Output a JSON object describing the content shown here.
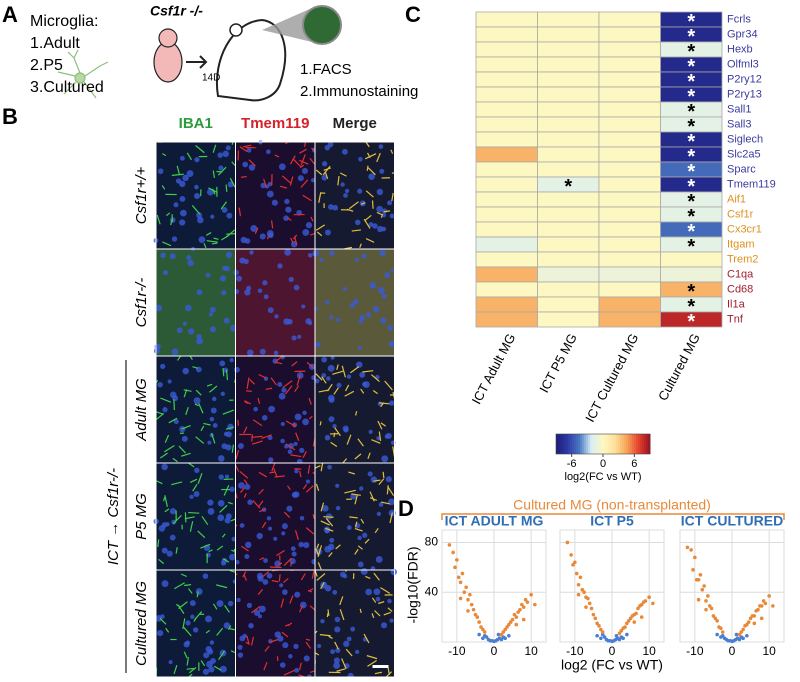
{
  "panel_labels": [
    "A",
    "B",
    "C",
    "D"
  ],
  "panel_a": {
    "heading": "Microglia:",
    "sources": [
      "1.Adult",
      "2.P5",
      "3.Cultured"
    ],
    "model": "Csf1r -/-",
    "interval": "14D",
    "readouts": [
      "1.FACS",
      "2.Immunostaining"
    ]
  },
  "panel_b": {
    "channels": [
      "IBA1",
      "Tmem119",
      "Merge"
    ],
    "channel_colors": [
      "#2e9a3e",
      "#d6202a",
      "#222222"
    ],
    "rows": [
      "Csf1r+/+",
      "Csf1r-/-",
      "Adult MG",
      "P5 MG",
      "Cultured MG"
    ],
    "group_label": "ICT → Csf1r-/-"
  },
  "panel_d": {
    "title": "Cultured MG (non-transplanted)",
    "title_color": "#e8893a",
    "ylabel": "-log10(FDR)",
    "xlabel": "log2 (FC vs WT)"
  },
  "chart_data": [
    {
      "type": "heatmap",
      "rows": [
        "Fcrls",
        "Gpr34",
        "Hexb",
        "Olfml3",
        "P2ry12",
        "P2ry13",
        "Sall1",
        "Sall3",
        "Siglech",
        "Slc2a5",
        "Sparc",
        "Tmem119",
        "Aif1",
        "Csf1r",
        "Cx3cr1",
        "Itgam",
        "Trem2",
        "C1qa",
        "Cd68",
        "Il1a",
        "Tnf"
      ],
      "row_label_colors": [
        "#3b3b9e",
        "#3b3b9e",
        "#3b3b9e",
        "#3b3b9e",
        "#3b3b9e",
        "#3b3b9e",
        "#3b3b9e",
        "#3b3b9e",
        "#3b3b9e",
        "#3b3b9e",
        "#3b3b9e",
        "#3b3b9e",
        "#e0901e",
        "#e0901e",
        "#e0901e",
        "#e0901e",
        "#e0901e",
        "#a31d2d",
        "#a31d2d",
        "#a31d2d",
        "#a31d2d"
      ],
      "columns": [
        "ICT Adult MG",
        "ICT P5 MG",
        "ICT Cultured MG",
        "Cultured MG"
      ],
      "values": [
        [
          0,
          0,
          0,
          -8
        ],
        [
          0,
          0,
          0,
          -8
        ],
        [
          0,
          0,
          0,
          -1.5
        ],
        [
          0,
          0,
          0,
          -8
        ],
        [
          0,
          0,
          0,
          -8
        ],
        [
          0,
          0,
          0,
          -8
        ],
        [
          0,
          0,
          0,
          -1.5
        ],
        [
          0,
          0,
          0,
          -1.5
        ],
        [
          0,
          0,
          0,
          -8
        ],
        [
          4,
          0,
          0,
          -8
        ],
        [
          0,
          0,
          0,
          -5
        ],
        [
          0,
          -1.5,
          0,
          -8
        ],
        [
          0,
          0,
          0,
          -1.5
        ],
        [
          0,
          0,
          0,
          -1.5
        ],
        [
          0,
          0,
          0,
          -5
        ],
        [
          -1.5,
          0,
          0,
          -1.5
        ],
        [
          0,
          0,
          0,
          0
        ],
        [
          4,
          -1,
          -1,
          -1
        ],
        [
          0,
          0,
          0,
          4
        ],
        [
          4,
          0,
          4,
          -1.5
        ],
        [
          4,
          0,
          4,
          8
        ]
      ],
      "stars": [
        [
          null,
          null,
          null,
          "*"
        ],
        [
          null,
          null,
          null,
          "*"
        ],
        [
          null,
          null,
          null,
          "*"
        ],
        [
          null,
          null,
          null,
          "*"
        ],
        [
          null,
          null,
          null,
          "*"
        ],
        [
          null,
          null,
          null,
          "*"
        ],
        [
          null,
          null,
          null,
          "*"
        ],
        [
          null,
          null,
          null,
          "*"
        ],
        [
          null,
          null,
          null,
          "*"
        ],
        [
          null,
          null,
          null,
          "*"
        ],
        [
          null,
          null,
          null,
          "*"
        ],
        [
          null,
          "*",
          null,
          "*"
        ],
        [
          null,
          null,
          null,
          "*"
        ],
        [
          null,
          null,
          null,
          "*"
        ],
        [
          null,
          null,
          null,
          "*"
        ],
        [
          null,
          null,
          null,
          "*"
        ],
        [
          null,
          null,
          null,
          null
        ],
        [
          null,
          null,
          null,
          null
        ],
        [
          null,
          null,
          null,
          "*"
        ],
        [
          null,
          null,
          null,
          "*"
        ],
        [
          null,
          null,
          null,
          "*"
        ]
      ],
      "colormap": [
        "#1c1c78",
        "#2e3aa6",
        "#4a78c0",
        "#d8edf6",
        "#fdf8c2",
        "#fde29a",
        "#f8a55a",
        "#e5452f",
        "#9c0f20"
      ],
      "vlim": [
        -9,
        9
      ],
      "colorbar": {
        "ticks": [
          -6,
          0,
          6
        ],
        "label": "log2(FC vs WT)"
      }
    },
    {
      "type": "scatter",
      "title": "ICT ADULT MG",
      "xlim": [
        -14,
        14
      ],
      "ylim": [
        0,
        90
      ],
      "xticks": [
        -10,
        0,
        10
      ],
      "yticks": [
        40,
        80
      ],
      "grid": true,
      "series": [
        {
          "color": "#4a7fd0",
          "x": [
            -4,
            -3,
            -2,
            -1.5,
            -1,
            -0.5,
            0,
            0.5,
            1,
            1.5,
            2,
            2.5,
            3,
            4,
            -2.5,
            1.2
          ],
          "y": [
            6,
            3,
            4,
            2,
            1,
            1,
            0.5,
            1,
            2,
            3,
            2,
            4,
            3,
            5,
            5,
            6
          ]
        },
        {
          "color": "#e8893a",
          "x": [
            -12,
            -11,
            -10.5,
            -10,
            -9.5,
            -9,
            -8.5,
            -8,
            -7.5,
            -7,
            -6.5,
            -6,
            -5.5,
            -5,
            -4.5,
            -4,
            -3.5,
            -3,
            -2.5,
            2,
            2.5,
            3,
            3.5,
            4,
            4.5,
            5,
            5.5,
            6,
            6.5,
            7,
            7.5,
            8,
            8.5,
            9,
            10,
            11,
            -9,
            -7,
            6,
            8
          ],
          "y": [
            78,
            72,
            60,
            66,
            52,
            48,
            55,
            40,
            44,
            34,
            38,
            30,
            26,
            22,
            20,
            16,
            12,
            10,
            8,
            6,
            8,
            10,
            12,
            14,
            16,
            18,
            22,
            20,
            24,
            26,
            30,
            28,
            34,
            32,
            38,
            30,
            35,
            25,
            14,
            18
          ]
        }
      ]
    },
    {
      "type": "scatter",
      "title": "ICT P5",
      "xlim": [
        -14,
        14
      ],
      "ylim": [
        0,
        90
      ],
      "xticks": [
        -10,
        0,
        10
      ],
      "yticks": [
        40,
        80
      ],
      "grid": true,
      "series": [
        {
          "color": "#4a7fd0",
          "x": [
            -4,
            -3,
            -2,
            -1.5,
            -1,
            -0.5,
            0,
            0.5,
            1,
            1.5,
            2,
            2.5,
            3,
            4,
            -2.5,
            1.2
          ],
          "y": [
            5,
            3,
            4,
            2,
            1,
            1,
            0.5,
            1,
            2,
            3,
            2,
            4,
            3,
            6,
            6,
            5
          ]
        },
        {
          "color": "#e8893a",
          "x": [
            -12,
            -11,
            -10.5,
            -10,
            -9.5,
            -9,
            -8.5,
            -8,
            -7.5,
            -7,
            -6.5,
            -6,
            -5.5,
            -5,
            -4.5,
            -4,
            -3.5,
            -3,
            -2.5,
            2,
            2.5,
            3,
            3.5,
            4,
            4.5,
            5,
            5.5,
            6,
            6.5,
            7,
            7.5,
            8,
            8.5,
            9,
            10,
            11,
            -9,
            -7,
            6,
            8
          ],
          "y": [
            80,
            70,
            62,
            64,
            55,
            46,
            52,
            42,
            40,
            36,
            35,
            31,
            27,
            22,
            19,
            15,
            13,
            10,
            8,
            7,
            9,
            11,
            12,
            15,
            17,
            19,
            21,
            22,
            23,
            27,
            29,
            30,
            32,
            33,
            36,
            31,
            38,
            28,
            16,
            20
          ]
        }
      ]
    },
    {
      "type": "scatter",
      "title": "ICT CULTURED",
      "xlim": [
        -14,
        14
      ],
      "ylim": [
        0,
        90
      ],
      "xticks": [
        -10,
        0,
        10
      ],
      "yticks": [
        40,
        80
      ],
      "grid": true,
      "series": [
        {
          "color": "#4a7fd0",
          "x": [
            -4,
            -3,
            -2,
            -1.5,
            -1,
            -0.5,
            0,
            0.5,
            1,
            1.5,
            2,
            2.5,
            3,
            4,
            -2.5,
            1.2
          ],
          "y": [
            6,
            4,
            3,
            2,
            1,
            1,
            0.5,
            1,
            2,
            3,
            2,
            4,
            3,
            5,
            5,
            6
          ]
        },
        {
          "color": "#e8893a",
          "x": [
            -12,
            -11,
            -10.5,
            -10,
            -9.5,
            -9,
            -8.5,
            -8,
            -7.5,
            -7,
            -6.5,
            -6,
            -5.5,
            -5,
            -4.5,
            -4,
            -3.5,
            -3,
            -2.5,
            2,
            2.5,
            3,
            3.5,
            4,
            4.5,
            5,
            5.5,
            6,
            6.5,
            7,
            7.5,
            8,
            8.5,
            9,
            10,
            11,
            -9,
            -7,
            6,
            8
          ],
          "y": [
            76,
            74,
            58,
            68,
            50,
            50,
            54,
            42,
            45,
            33,
            37,
            29,
            27,
            21,
            19,
            17,
            12,
            11,
            8,
            6,
            8,
            10,
            13,
            14,
            16,
            19,
            21,
            21,
            25,
            26,
            29,
            29,
            33,
            31,
            37,
            29,
            34,
            26,
            15,
            19
          ]
        }
      ]
    }
  ]
}
